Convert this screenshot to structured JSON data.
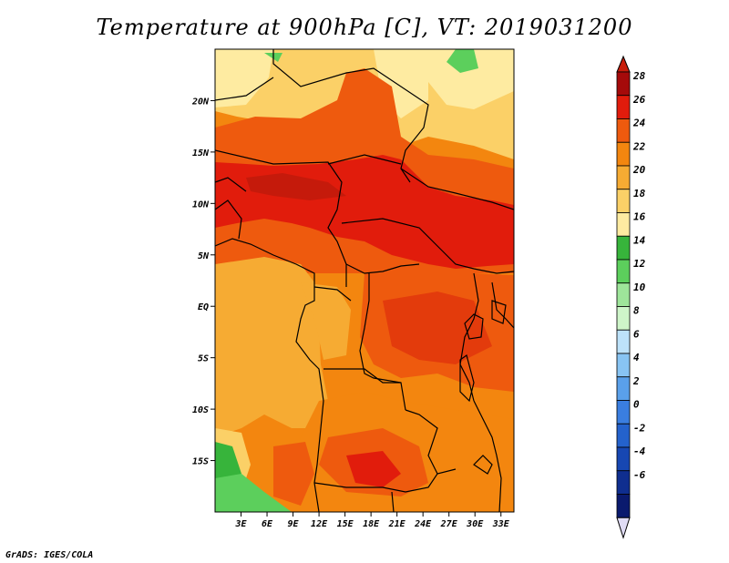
{
  "title": "Temperature at 900hPa [C], VT: 2019031200",
  "credit": "GrADS: IGES/COLA",
  "map": {
    "lon_range": [
      0,
      34.5
    ],
    "lat_range": [
      -20,
      25
    ],
    "lon_ticks": [
      "3E",
      "6E",
      "9E",
      "12E",
      "15E",
      "18E",
      "21E",
      "24E",
      "27E",
      "30E",
      "33E"
    ],
    "lon_tick_values": [
      3,
      6,
      9,
      12,
      15,
      18,
      21,
      24,
      27,
      30,
      33
    ],
    "lat_ticks": [
      "20N",
      "15N",
      "10N",
      "5N",
      "EQ",
      "5S",
      "10S",
      "15S"
    ],
    "lat_tick_values": [
      20,
      15,
      10,
      5,
      0,
      -5,
      -10,
      -15
    ]
  },
  "colorbar": {
    "labels": [
      "28",
      "26",
      "24",
      "22",
      "20",
      "18",
      "16",
      "14",
      "12",
      "10",
      "8",
      "6",
      "4",
      "2",
      "0",
      "-2",
      "-4",
      "-6"
    ],
    "colors": [
      "#a50a0a",
      "#e11c0c",
      "#ee5a0e",
      "#f3860f",
      "#f6ab33",
      "#fbd067",
      "#feeba1",
      "#37b43b",
      "#5ccf5c",
      "#9ee59a",
      "#cef5c9",
      "#bde2fa",
      "#88c4f3",
      "#5aa0ea",
      "#3a7ee0",
      "#2462cc",
      "#1747b2",
      "#0f2e8f",
      "#0a1a6e"
    ],
    "end_top": "#c81e0c",
    "end_bottom": "#e0dcf5"
  }
}
